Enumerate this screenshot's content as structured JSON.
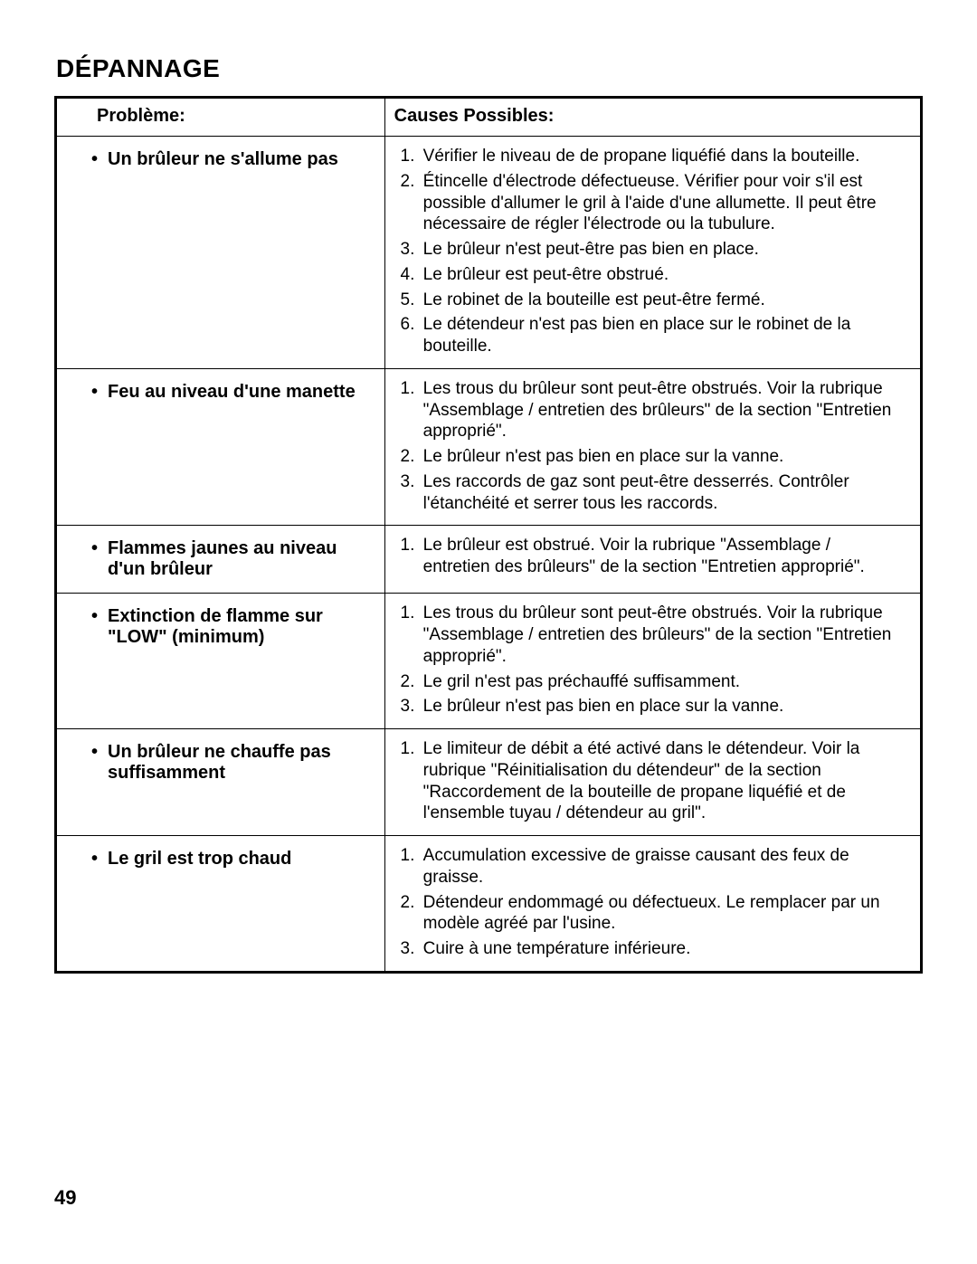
{
  "section_title": "DÉPANNAGE",
  "page_number": "49",
  "columns": {
    "problem": "Problème:",
    "causes": "Causes Possibles:"
  },
  "rows": [
    {
      "problem": "Un brûleur ne s'allume pas",
      "causes": [
        "Vérifier le niveau de de propane liquéfié dans la bouteille.",
        "Étincelle d'électrode défectueuse. Vérifier pour voir s'il est possible d'allumer le gril à l'aide d'une allumette. Il peut être nécessaire de régler l'électrode ou la tubulure.",
        "Le brûleur n'est peut-être pas bien en place.",
        "Le brûleur est peut-être obstrué.",
        "Le robinet de la bouteille est peut-être fermé.",
        "Le détendeur n'est pas bien en place sur le robinet de la bouteille."
      ]
    },
    {
      "problem": "Feu au niveau d'une manette",
      "causes": [
        "Les trous du brûleur sont peut-être obstrués. Voir la rubrique \"Assemblage / entretien des brûleurs\" de la section \"Entretien approprié\".",
        "Le brûleur n'est pas bien en place sur la vanne.",
        "Les raccords de gaz sont peut-être desserrés. Contrôler l'étanchéité et serrer tous les raccords."
      ]
    },
    {
      "problem": "Flammes jaunes au niveau d'un brûleur",
      "causes": [
        "Le brûleur est obstrué. Voir la rubrique \"Assemblage / entretien des brûleurs\" de la section \"Entretien approprié\"."
      ]
    },
    {
      "problem": "Extinction de flamme sur \"LOW\" (minimum)",
      "causes": [
        "Les trous du brûleur sont peut-être obstrués. Voir la rubrique \"Assemblage / entretien des brûleurs\" de la section \"Entretien approprié\".",
        "Le gril n'est pas préchauffé suffisamment.",
        "Le brûleur n'est pas bien en place sur la vanne."
      ]
    },
    {
      "problem": "Un brûleur ne chauffe pas suffisamment",
      "causes": [
        "Le limiteur de débit a été activé dans le détendeur. Voir la rubrique \"Réinitialisation du détendeur\" de la section \"Raccordement de la bouteille de propane liquéfié et de l'ensemble tuyau / détendeur au gril\"."
      ]
    },
    {
      "problem": "Le gril est trop chaud",
      "causes": [
        "Accumulation excessive de graisse causant des feux de graisse.",
        "Détendeur endommagé ou défectueux. Le remplacer par un modèle agréé par l'usine.",
        "Cuire à une température inférieure."
      ]
    }
  ]
}
